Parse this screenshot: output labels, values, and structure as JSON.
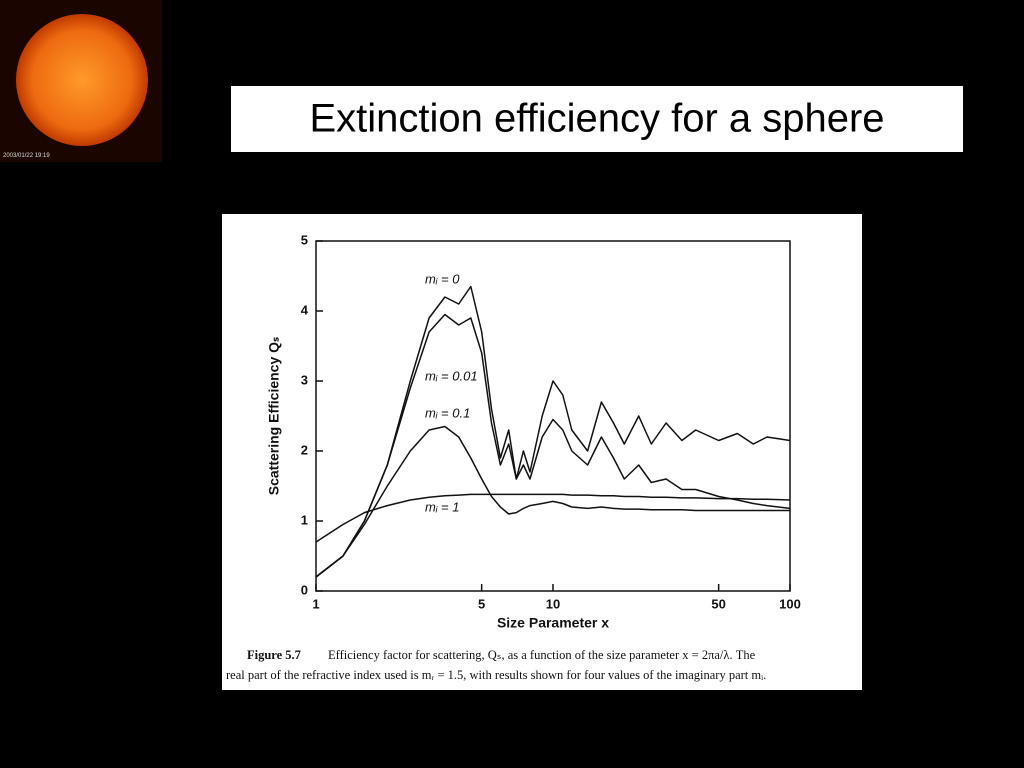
{
  "slide_title": "Extinction efficiency for a sphere",
  "sun_timestamp": "2003/01/22 19:19",
  "chart_data": {
    "type": "line",
    "ylabel": "Scattering Efficiency Qₛ",
    "xlabel": "Size Parameter x",
    "x": [
      1,
      1.3,
      1.6,
      2,
      2.5,
      3,
      3.5,
      4,
      4.5,
      5,
      5.5,
      6,
      6.5,
      7,
      7.5,
      8,
      9,
      10,
      11,
      12,
      14,
      16,
      18,
      20,
      23,
      26,
      30,
      35,
      40,
      50,
      60,
      70,
      80,
      100
    ],
    "xscale": "log",
    "xlim": [
      1,
      100
    ],
    "xticks": [
      1,
      5,
      10,
      50,
      100
    ],
    "ylim": [
      0,
      5
    ],
    "yticks": [
      0,
      1,
      2,
      3,
      4,
      5
    ],
    "series": [
      {
        "name": "mᵢ = 0",
        "color": "#111111",
        "values": [
          0.2,
          0.5,
          1.0,
          1.8,
          3.0,
          3.9,
          4.2,
          4.1,
          4.35,
          3.7,
          2.6,
          1.9,
          2.3,
          1.6,
          2.0,
          1.7,
          2.5,
          3.0,
          2.8,
          2.3,
          2.0,
          2.7,
          2.4,
          2.1,
          2.5,
          2.1,
          2.4,
          2.15,
          2.3,
          2.15,
          2.25,
          2.1,
          2.2,
          2.15
        ]
      },
      {
        "name": "mᵢ = 0.01",
        "color": "#111111",
        "values": [
          0.2,
          0.5,
          1.0,
          1.8,
          2.9,
          3.7,
          3.95,
          3.8,
          3.9,
          3.4,
          2.4,
          1.8,
          2.1,
          1.6,
          1.8,
          1.6,
          2.2,
          2.45,
          2.3,
          2.0,
          1.8,
          2.2,
          1.9,
          1.6,
          1.8,
          1.55,
          1.6,
          1.45,
          1.45,
          1.35,
          1.3,
          1.25,
          1.22,
          1.18
        ]
      },
      {
        "name": "mᵢ = 0.1",
        "color": "#111111",
        "values": [
          0.2,
          0.5,
          0.95,
          1.5,
          2.0,
          2.3,
          2.35,
          2.2,
          1.9,
          1.6,
          1.35,
          1.2,
          1.1,
          1.12,
          1.18,
          1.22,
          1.25,
          1.28,
          1.25,
          1.2,
          1.18,
          1.2,
          1.18,
          1.17,
          1.17,
          1.16,
          1.16,
          1.16,
          1.15,
          1.15,
          1.15,
          1.15,
          1.15,
          1.15
        ]
      },
      {
        "name": "mᵢ = 1",
        "color": "#111111",
        "values": [
          0.7,
          0.95,
          1.12,
          1.22,
          1.3,
          1.34,
          1.36,
          1.37,
          1.38,
          1.38,
          1.38,
          1.38,
          1.38,
          1.38,
          1.38,
          1.38,
          1.38,
          1.38,
          1.38,
          1.37,
          1.37,
          1.36,
          1.36,
          1.35,
          1.35,
          1.34,
          1.34,
          1.33,
          1.33,
          1.32,
          1.32,
          1.31,
          1.31,
          1.3
        ]
      }
    ],
    "caption_label": "Figure 5.7",
    "caption_lines": [
      "Efficiency factor for scattering, Qₛ, as a function of the size parameter x = 2πa/λ. The",
      "real part of the refractive index used is mᵣ = 1.5, with results shown for four values of the imaginary part mᵢ."
    ]
  }
}
